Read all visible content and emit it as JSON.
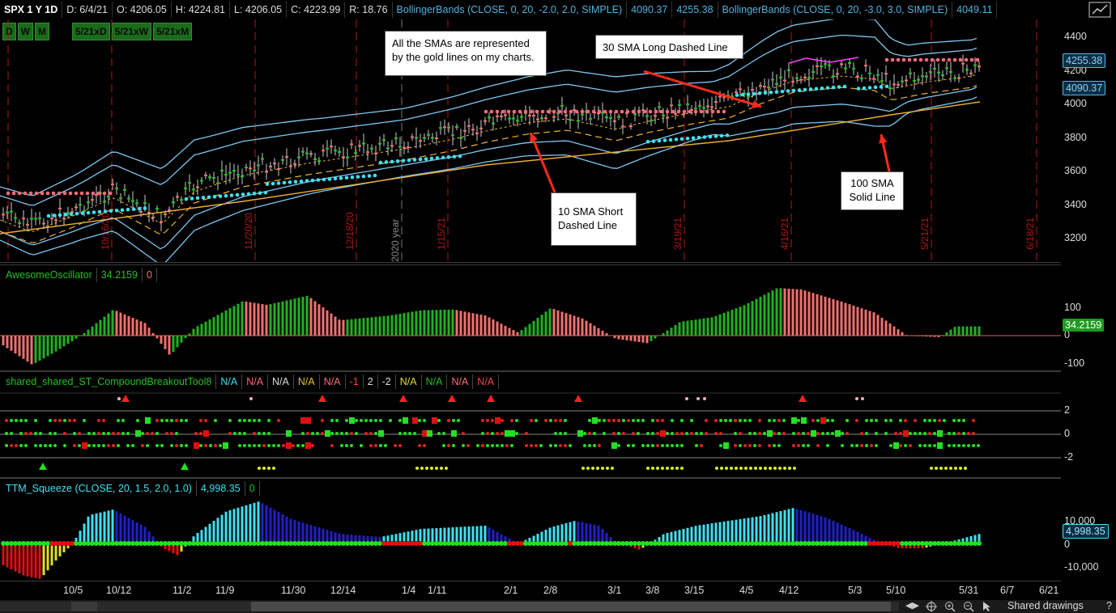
{
  "infobar": {
    "symbol": "SPX 1 Y 1D",
    "date": "D: 6/4/21",
    "open": "O: 4206.05",
    "high": "H: 4224.81",
    "low": "L: 4206.05",
    "close": "C: 4223.99",
    "range": "R: 18.76",
    "bb1_name": "BollingerBands (CLOSE, 0, 20, -2.0, 2.0, SIMPLE)",
    "bb1_lower": "4090.37",
    "bb1_upper": "4255.38",
    "bb2_name": "BollingerBands (CLOSE, 0, 20, -3.0, 3.0, SIMPLE)",
    "bb2_lower": "4049.11"
  },
  "timeframes": [
    "D",
    "W",
    "M",
    "",
    "5/21xD",
    "5/21xW",
    "5/21xM"
  ],
  "price_pane": {
    "y_ticks": [
      "4400",
      "4200",
      "4000",
      "3800",
      "3600",
      "3400",
      "3200"
    ],
    "badge_upper": "4255.38",
    "badge_lower": "4090.37",
    "vertical_labels": [
      "10/16/20",
      "11/20/20",
      "12/18/20",
      "2020 year",
      "1/15/21",
      "3/19/21",
      "4/16/21",
      "5/21/21",
      "6/18/21"
    ],
    "callouts": {
      "sma_note": "All the SMAs are represented by the gold lines on my charts.",
      "sma30": "30 SMA Long Dashed Line",
      "sma10": "10 SMA Short Dashed Line",
      "sma100": "100 SMA Solid Line"
    }
  },
  "ao_pane": {
    "name": "AwesomeOscillator",
    "value": "34.2159",
    "zero": "0",
    "y_ticks": [
      "100",
      "0",
      "-100"
    ],
    "badge": "34.2159"
  },
  "st_pane": {
    "name": "shared_shared_ST_CompoundBreakoutTool8",
    "values": [
      "N/A",
      "N/A",
      "N/A",
      "N/A",
      "N/A",
      "-1",
      "2",
      "-2",
      "N/A",
      "N/A",
      "N/A",
      "N/A"
    ],
    "y_ticks": [
      "2",
      "0",
      "-2"
    ]
  },
  "ttm_pane": {
    "name": "TTM_Squeeze (CLOSE, 20, 1.5, 2.0, 1.0)",
    "value": "4,998.35",
    "zero": "0",
    "y_ticks": [
      "10,000",
      "0",
      "-10,000"
    ],
    "badge": "4,998.35"
  },
  "x_axis": [
    "10/5",
    "10/12",
    "11/2",
    "11/9",
    "11/30",
    "12/14",
    "1/4",
    "1/11",
    "2/1",
    "2/8",
    "3/1",
    "3/8",
    "3/15",
    "4/5",
    "4/12",
    "5/3",
    "5/10",
    "5/31",
    "6/7",
    "6/21"
  ],
  "bottom": {
    "shared_drawings": "Shared drawings",
    "help": "?"
  },
  "colors": {
    "bollinger": "#7ec8f0",
    "sma": "#f0b030",
    "up": "#22c022",
    "down": "#f07070",
    "cyan_dots": "#40e0f0",
    "pink_dots": "#ff6b7a",
    "red_vline": "#b01818"
  }
}
